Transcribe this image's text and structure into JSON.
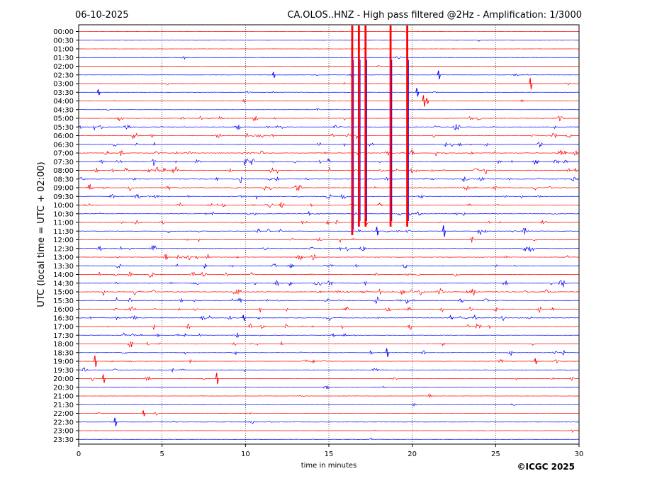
{
  "chart_data": {
    "type": "line",
    "date": "06-10-2025",
    "title": "CA.OLOS..HNZ - High pass filtered @2Hz - Amplification: 1/3000",
    "xlabel": "time in minutes",
    "ylabel": "UTC (local time = UTC + 02:00)",
    "credit": "©ICGC 2025",
    "xlim": [
      0,
      30
    ],
    "x_ticks": [
      0,
      5,
      10,
      15,
      20,
      25,
      30
    ],
    "grid": "vertical dotted at every 5 minutes",
    "row_labels": [
      "00:00",
      "00:30",
      "01:00",
      "01:30",
      "02:00",
      "02:30",
      "03:00",
      "03:30",
      "04:00",
      "04:30",
      "05:00",
      "05:30",
      "06:00",
      "06:30",
      "07:00",
      "07:30",
      "08:00",
      "08:30",
      "09:00",
      "09:30",
      "10:00",
      "10:30",
      "11:00",
      "11:30",
      "12:00",
      "12:30",
      "13:00",
      "13:30",
      "14:00",
      "14:30",
      "15:00",
      "15:30",
      "16:00",
      "16:30",
      "17:00",
      "17:30",
      "18:00",
      "18:30",
      "19:00",
      "19:30",
      "20:00",
      "20:30",
      "21:00",
      "21:30",
      "22:00",
      "22:30",
      "23:00",
      "23:30"
    ],
    "series_colors": [
      "#ff0000",
      "#0000ff"
    ],
    "activity_level": [
      0.05,
      0.08,
      0.05,
      0.08,
      0.05,
      0.15,
      0.12,
      0.15,
      0.12,
      0.08,
      0.45,
      0.6,
      0.65,
      0.55,
      0.75,
      0.7,
      0.85,
      0.6,
      0.65,
      0.5,
      0.55,
      0.5,
      0.55,
      0.5,
      0.4,
      0.55,
      0.5,
      0.45,
      0.5,
      0.6,
      0.7,
      0.6,
      0.7,
      0.6,
      0.55,
      0.45,
      0.35,
      0.35,
      0.3,
      0.3,
      0.25,
      0.1,
      0.12,
      0.08,
      0.12,
      0.1,
      0.08,
      0.05
    ],
    "large_event": {
      "start_row": "00:00",
      "end_row": "11:00",
      "x_minutes": [
        16.4,
        16.8,
        17.2,
        18.7,
        19.7
      ]
    },
    "minor_events": [
      {
        "row": "02:30",
        "x": 11.7
      },
      {
        "row": "02:30",
        "x": 21.6
      },
      {
        "row": "03:00",
        "x": 27.1
      },
      {
        "row": "03:30",
        "x": 1.2
      },
      {
        "row": "03:30",
        "x": 20.3
      },
      {
        "row": "04:00",
        "x": 20.7
      },
      {
        "row": "04:00",
        "x": 20.9
      },
      {
        "row": "11:30",
        "x": 17.9
      },
      {
        "row": "11:30",
        "x": 21.9
      },
      {
        "row": "16:30",
        "x": 9.9
      },
      {
        "row": "18:30",
        "x": 18.5
      },
      {
        "row": "19:00",
        "x": 1.0
      },
      {
        "row": "19:00",
        "x": 27.4
      },
      {
        "row": "20:00",
        "x": 1.5
      },
      {
        "row": "20:00",
        "x": 8.3
      },
      {
        "row": "22:00",
        "x": 3.9
      },
      {
        "row": "22:30",
        "x": 2.2
      }
    ]
  }
}
